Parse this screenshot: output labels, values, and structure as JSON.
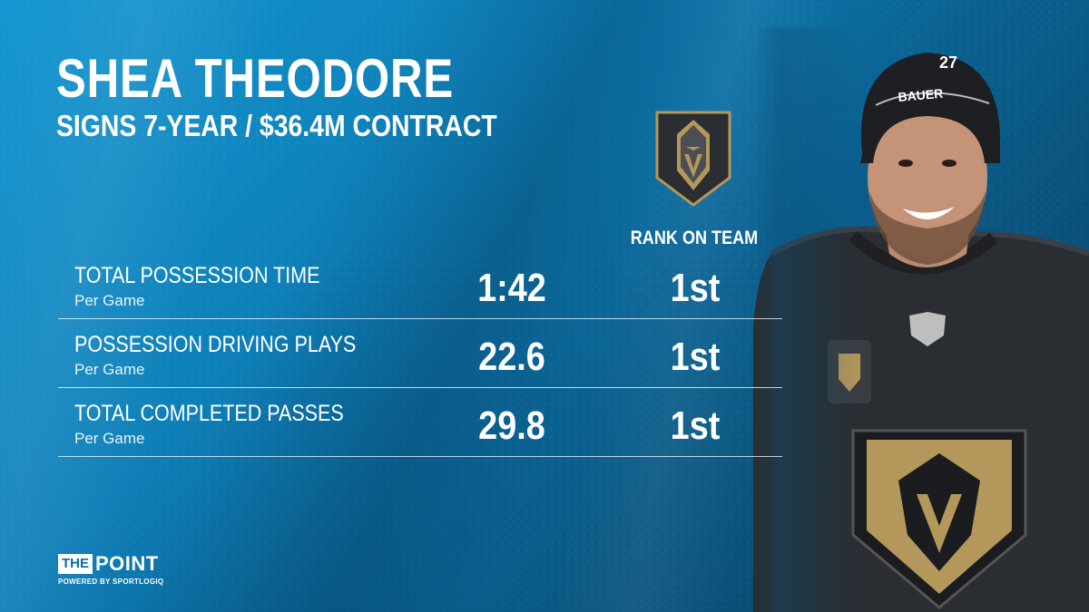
{
  "header": {
    "title": "SHEA THEODORE",
    "subtitle": "SIGNS 7-YEAR / $36.4M CONTRACT"
  },
  "team": {
    "logo_icon": "vegas-golden-knights-helmet-logo",
    "rank_header": "RANK ON TEAM"
  },
  "stats": [
    {
      "label": "TOTAL POSSESSION TIME",
      "sub": "Per Game",
      "value": "1:42",
      "rank": "1st"
    },
    {
      "label": "POSSESSION DRIVING PLAYS",
      "sub": "Per Game",
      "value": "22.6",
      "rank": "1st"
    },
    {
      "label": "TOTAL COMPLETED PASSES",
      "sub": "Per Game",
      "value": "29.8",
      "rank": "1st"
    }
  ],
  "player_photo": {
    "jersey_number": "27",
    "helmet_brand": "BAUER"
  },
  "brand": {
    "the": "THE",
    "point": "POINT",
    "powered_by": "POWERED BY SPORTLOGIQ"
  },
  "colors": {
    "background": "#0e7fb8",
    "gold": "#b4975a",
    "jersey": "#2a2d31",
    "text": "#ffffff"
  }
}
